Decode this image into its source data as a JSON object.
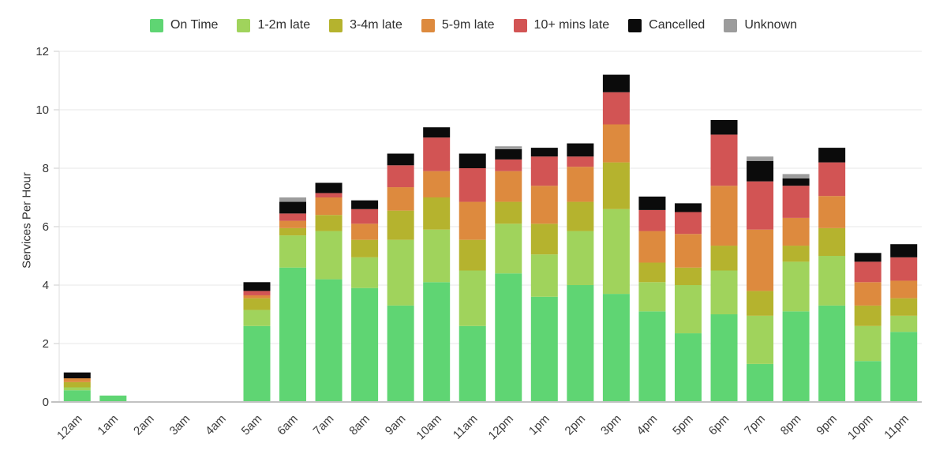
{
  "legend": {
    "position": "top",
    "items": [
      "On Time",
      "1-2m late",
      "3-4m late",
      "5-9m late",
      "10+ mins late",
      "Cancelled",
      "Unknown"
    ]
  },
  "colors": {
    "on_time": "#5fd573",
    "late_1_2": "#a0d35c",
    "late_3_4": "#b5b32e",
    "late_5_9": "#dd8a3e",
    "late_10_plus": "#d25454",
    "cancelled": "#0b0b0b",
    "unknown": "#9c9c9c",
    "grid": "#e7e7e7",
    "axis_line": "#c2c2c2",
    "tick": "#cccccc",
    "text": "#333333",
    "background": "#ffffff"
  },
  "chart_data": {
    "type": "bar",
    "stacked": true,
    "title": "",
    "xlabel": "",
    "ylabel": "Services Per Hour",
    "ylim": [
      0,
      12
    ],
    "yticks": [
      0,
      2,
      4,
      6,
      8,
      10,
      12
    ],
    "grid": true,
    "legend_position": "top",
    "categories": [
      "12am",
      "1am",
      "2am",
      "3am",
      "4am",
      "5am",
      "6am",
      "7am",
      "8am",
      "9am",
      "10am",
      "11am",
      "12pm",
      "1pm",
      "2pm",
      "3pm",
      "4pm",
      "5pm",
      "6pm",
      "7pm",
      "8pm",
      "9pm",
      "10pm",
      "11pm"
    ],
    "series": [
      {
        "name": "On Time",
        "color": "#5fd573",
        "values": [
          0.4,
          0.22,
          0,
          0,
          0,
          2.6,
          4.6,
          4.2,
          3.9,
          3.3,
          4.1,
          2.6,
          4.4,
          3.6,
          4.0,
          3.7,
          3.1,
          2.35,
          3.0,
          1.3,
          3.1,
          3.3,
          1.4,
          2.4
        ]
      },
      {
        "name": "1-2m late",
        "color": "#a0d35c",
        "values": [
          0.1,
          0,
          0,
          0,
          0,
          0.55,
          1.1,
          1.65,
          1.05,
          2.25,
          1.8,
          1.9,
          1.7,
          1.45,
          1.85,
          2.9,
          1.0,
          1.65,
          1.5,
          1.65,
          1.7,
          1.7,
          1.2,
          0.55
        ]
      },
      {
        "name": "3-4m late",
        "color": "#b5b32e",
        "values": [
          0.18,
          0,
          0,
          0,
          0,
          0.4,
          0.25,
          0.55,
          0.6,
          1.0,
          1.1,
          1.05,
          0.75,
          1.05,
          1.0,
          1.6,
          0.67,
          0.6,
          0.85,
          0.85,
          0.55,
          0.95,
          0.7,
          0.6
        ]
      },
      {
        "name": "5-9m late",
        "color": "#dd8a3e",
        "values": [
          0.13,
          0,
          0,
          0,
          0,
          0.1,
          0.25,
          0.6,
          0.55,
          0.8,
          0.9,
          1.3,
          1.05,
          1.3,
          1.2,
          1.3,
          1.08,
          1.15,
          2.05,
          2.1,
          0.95,
          1.1,
          0.8,
          0.6
        ]
      },
      {
        "name": "10+ mins late",
        "color": "#d25454",
        "values": [
          0,
          0,
          0,
          0,
          0,
          0.15,
          0.25,
          0.15,
          0.5,
          0.75,
          1.15,
          1.15,
          0.4,
          1.0,
          0.35,
          1.1,
          0.72,
          0.75,
          1.75,
          1.65,
          1.1,
          1.15,
          0.7,
          0.8
        ]
      },
      {
        "name": "Cancelled",
        "color": "#0b0b0b",
        "values": [
          0.2,
          0,
          0,
          0,
          0,
          0.3,
          0.4,
          0.35,
          0.3,
          0.4,
          0.35,
          0.5,
          0.35,
          0.3,
          0.45,
          0.6,
          0.46,
          0.3,
          0.5,
          0.7,
          0.25,
          0.5,
          0.3,
          0.45
        ]
      },
      {
        "name": "Unknown",
        "color": "#9c9c9c",
        "values": [
          0,
          0,
          0,
          0,
          0,
          0,
          0.15,
          0,
          0,
          0,
          0,
          0,
          0.1,
          0,
          0,
          0,
          0,
          0,
          0,
          0.15,
          0.15,
          0,
          0,
          0
        ]
      }
    ]
  }
}
